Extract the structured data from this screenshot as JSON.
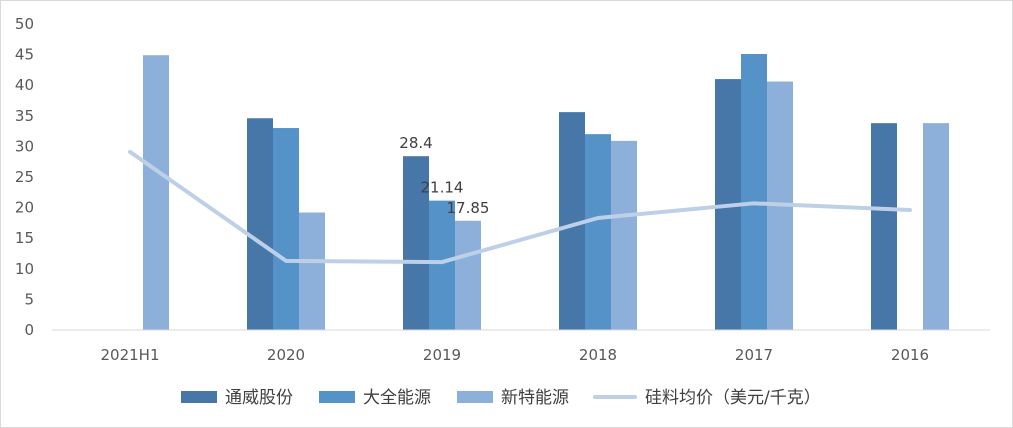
{
  "chart_data": {
    "type": "bar",
    "categories": [
      "2021H1",
      "2020",
      "2019",
      "2018",
      "2017",
      "2016"
    ],
    "ylim": [
      0,
      50
    ],
    "yticks": [
      0,
      5,
      10,
      15,
      20,
      25,
      30,
      35,
      40,
      45,
      50
    ],
    "grid": false,
    "legend_position": "bottom",
    "series": [
      {
        "name": "通威股份",
        "type": "bar",
        "color": "#4677a8",
        "values": [
          null,
          34.6,
          28.4,
          35.6,
          41.0,
          33.8
        ]
      },
      {
        "name": "大全能源",
        "type": "bar",
        "color": "#5592c8",
        "values": [
          null,
          33.0,
          21.14,
          32.0,
          45.1,
          null
        ]
      },
      {
        "name": "新特能源",
        "type": "bar",
        "color": "#8db0da",
        "values": [
          44.9,
          19.2,
          17.85,
          30.9,
          40.6,
          33.8
        ]
      },
      {
        "name": "硅料均价（美元/千克）",
        "type": "line",
        "color": "#bdd0e8",
        "values": [
          29.1,
          11.3,
          11.1,
          18.3,
          20.7,
          19.6
        ]
      }
    ],
    "data_labels": [
      {
        "series": 0,
        "category": 2,
        "text": "28.4"
      },
      {
        "series": 1,
        "category": 2,
        "text": "21.14"
      },
      {
        "series": 2,
        "category": 2,
        "text": "17.85"
      }
    ]
  }
}
